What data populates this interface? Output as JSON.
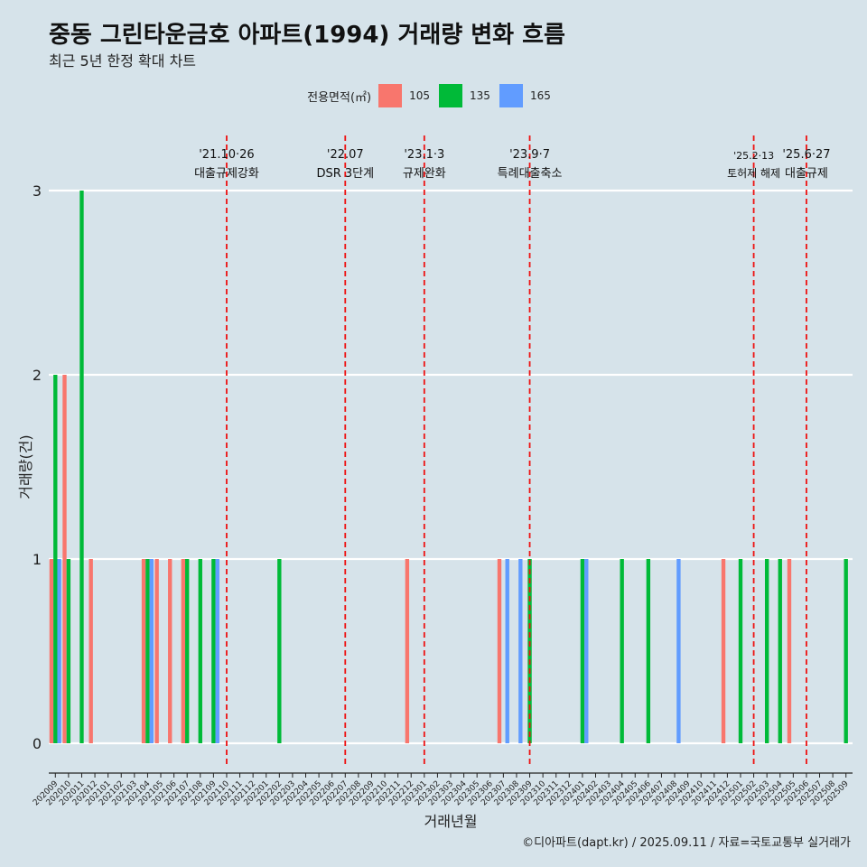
{
  "header": {
    "title": "중동 그린타운금호 아파트(1994) 거래량 변화 흐름",
    "subtitle": "최근 5년 한정 확대 차트"
  },
  "legend": {
    "title": "전용면적(㎡)",
    "items": [
      {
        "label": "105",
        "color": "#f8766d"
      },
      {
        "label": "135",
        "color": "#00ba38"
      },
      {
        "label": "165",
        "color": "#619cff"
      }
    ]
  },
  "caption": "©디아파트(dapt.kr) / 2025.09.11 / 자료=국토교통부 실거래가",
  "chart_data": {
    "type": "bar",
    "xlabel": "거래년월",
    "ylabel": "거래량(건)",
    "ylim": [
      0,
      3
    ],
    "yticks": [
      0,
      1,
      2,
      3
    ],
    "categories": [
      "202009",
      "202010",
      "202011",
      "202012",
      "202101",
      "202102",
      "202103",
      "202104",
      "202105",
      "202106",
      "202107",
      "202108",
      "202109",
      "202110",
      "202111",
      "202112",
      "202201",
      "202202",
      "202203",
      "202204",
      "202205",
      "202206",
      "202207",
      "202208",
      "202209",
      "202210",
      "202211",
      "202212",
      "202301",
      "202302",
      "202303",
      "202304",
      "202305",
      "202306",
      "202307",
      "202308",
      "202309",
      "202310",
      "202311",
      "202312",
      "202401",
      "202402",
      "202403",
      "202404",
      "202405",
      "202406",
      "202407",
      "202408",
      "202409",
      "202410",
      "202411",
      "202412",
      "202501",
      "202502",
      "202503",
      "202504",
      "202505",
      "202506",
      "202507",
      "202508",
      "202509"
    ],
    "series": [
      {
        "name": "105",
        "values": [
          1,
          2,
          0,
          1,
          0,
          0,
          0,
          1,
          1,
          1,
          1,
          0,
          0,
          0,
          0,
          0,
          0,
          0,
          0,
          0,
          0,
          0,
          0,
          0,
          0,
          0,
          0,
          1,
          0,
          0,
          0,
          0,
          0,
          0,
          1,
          0,
          0,
          0,
          0,
          0,
          0,
          0,
          0,
          0,
          0,
          0,
          0,
          0,
          0,
          0,
          0,
          1,
          0,
          0,
          0,
          0,
          1,
          0,
          0,
          0,
          0
        ]
      },
      {
        "name": "135",
        "values": [
          2,
          1,
          3,
          0,
          0,
          0,
          0,
          1,
          0,
          0,
          1,
          1,
          1,
          0,
          0,
          0,
          0,
          1,
          0,
          0,
          0,
          0,
          0,
          0,
          0,
          0,
          0,
          0,
          0,
          0,
          0,
          0,
          0,
          0,
          0,
          0,
          1,
          0,
          0,
          0,
          1,
          0,
          0,
          1,
          0,
          1,
          0,
          0,
          0,
          0,
          0,
          0,
          1,
          0,
          1,
          1,
          0,
          0,
          0,
          0,
          1
        ]
      },
      {
        "name": "165",
        "values": [
          1,
          0,
          0,
          0,
          0,
          0,
          0,
          1,
          0,
          0,
          0,
          0,
          1,
          0,
          0,
          0,
          0,
          0,
          0,
          0,
          0,
          0,
          0,
          0,
          0,
          0,
          0,
          0,
          0,
          0,
          0,
          0,
          0,
          0,
          1,
          1,
          0,
          0,
          0,
          0,
          1,
          0,
          0,
          0,
          0,
          0,
          0,
          1,
          0,
          0,
          0,
          0,
          0,
          0,
          0,
          0,
          0,
          0,
          0,
          0,
          0
        ]
      }
    ],
    "events": [
      {
        "date": "'21.10·26",
        "label": "대출규제강화",
        "x_category": "202110"
      },
      {
        "date": "'22.07",
        "label": "DSR 3단계",
        "x_category": "202207"
      },
      {
        "date": "'23.1·3",
        "label": "규제완화",
        "x_category": "202301"
      },
      {
        "date": "'23.9·7",
        "label": "특례대출축소",
        "x_category": "202309"
      },
      {
        "date": "'25.2·13",
        "label": "토허제 해제",
        "x_category": "202502"
      },
      {
        "date": "'25.6·27",
        "label": "대출규제",
        "x_category": "202506"
      }
    ]
  }
}
